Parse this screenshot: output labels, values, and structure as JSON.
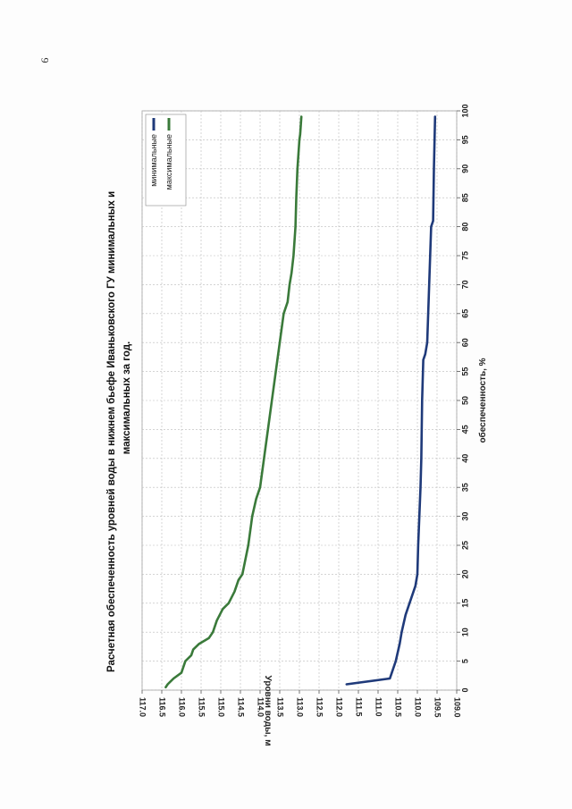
{
  "page": {
    "number": "9"
  },
  "chart_data": {
    "type": "line",
    "title_line1": "Расчетная обеспеченность уровней воды в нижнем бьефе Иваньковского ГУ  минимальных и",
    "title_line2": "максимальных за год.",
    "xlabel": "обеспеченность, %",
    "ylabel": "Уровни воды, м",
    "xlim": [
      0,
      100
    ],
    "ylim": [
      109.0,
      117.0
    ],
    "x_ticks": [
      0,
      5,
      10,
      15,
      20,
      25,
      30,
      35,
      40,
      45,
      50,
      55,
      60,
      65,
      70,
      75,
      80,
      85,
      90,
      95,
      100
    ],
    "x_tick_labels": [
      "0",
      "5",
      "10",
      "15",
      "20",
      "25",
      "30",
      "35",
      "40",
      "45",
      "50",
      "55",
      "60",
      "65",
      "70",
      "75",
      "80",
      "85",
      "90",
      "95",
      "100"
    ],
    "y_ticks": [
      109.0,
      109.5,
      110.0,
      110.5,
      111.0,
      111.5,
      112.0,
      112.5,
      113.0,
      113.5,
      114.0,
      114.5,
      115.0,
      115.5,
      116.0,
      116.5,
      117.0
    ],
    "y_tick_labels": [
      "109.0",
      "109.5",
      "110.0",
      "110.5",
      "111.0",
      "111.5",
      "112.0",
      "112.5",
      "113.0",
      "113.5",
      "114.0",
      "114.5",
      "115.0",
      "115.5",
      "116.0",
      "116.5",
      "117.0"
    ],
    "grid": true,
    "legend_position": "top-right",
    "series": [
      {
        "name": "минимальные",
        "color": "#1f3a7a",
        "x": [
          1,
          2,
          3,
          5,
          8,
          10,
          13,
          15,
          18,
          20,
          25,
          30,
          35,
          40,
          50,
          57,
          58,
          60,
          70,
          80,
          81,
          90,
          99
        ],
        "y": [
          111.8,
          110.7,
          110.65,
          110.55,
          110.45,
          110.4,
          110.3,
          110.2,
          110.05,
          110.0,
          109.98,
          109.95,
          109.92,
          109.9,
          109.88,
          109.85,
          109.8,
          109.75,
          109.7,
          109.65,
          109.6,
          109.58,
          109.55
        ]
      },
      {
        "name": "максимальные",
        "color": "#3a7a3a",
        "x": [
          0.5,
          1,
          2,
          3,
          5,
          6,
          7,
          8,
          9,
          10,
          12,
          14,
          15,
          17,
          19,
          20,
          25,
          30,
          33,
          35,
          40,
          45,
          50,
          55,
          60,
          65,
          67,
          70,
          72,
          75,
          80,
          85,
          90,
          95,
          96,
          99
        ],
        "y": [
          116.4,
          116.35,
          116.2,
          116.0,
          115.9,
          115.75,
          115.7,
          115.55,
          115.3,
          115.2,
          115.1,
          114.95,
          114.8,
          114.65,
          114.55,
          114.45,
          114.3,
          114.2,
          114.1,
          114.0,
          113.9,
          113.8,
          113.7,
          113.6,
          113.5,
          113.4,
          113.3,
          113.25,
          113.2,
          113.15,
          113.1,
          113.08,
          113.05,
          113.0,
          112.98,
          112.95
        ]
      }
    ]
  }
}
